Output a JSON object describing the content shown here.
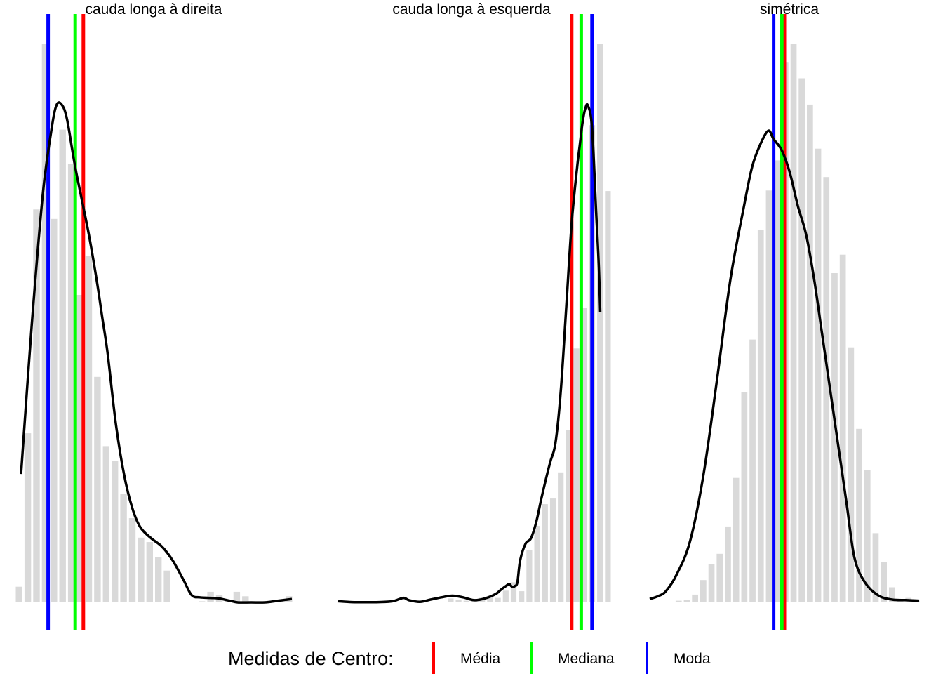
{
  "colors": {
    "bars": "#d9d9d9",
    "density": "#000000",
    "mean": "#ff0000",
    "median": "#00ff00",
    "mode": "#0000ff"
  },
  "legend": {
    "title": "Medidas de Centro:",
    "position": "bottom",
    "items": [
      {
        "label": "Média",
        "color": "#ff0000"
      },
      {
        "label": "Mediana",
        "color": "#00ff00"
      },
      {
        "label": "Moda",
        "color": "#0000ff"
      }
    ]
  },
  "chart_data": [
    {
      "type": "histogram",
      "title": "cauda longa à direita",
      "axes_visible": false,
      "bar_heights": [
        2.8,
        30.3,
        70.4,
        100,
        68.7,
        84.7,
        78.5,
        55.1,
        62.1,
        40.4,
        28.0,
        25.3,
        19.5,
        15.1,
        11.6,
        10.8,
        8.1,
        5.7,
        0,
        0,
        0,
        0.2,
        1.9,
        1.3,
        0.3,
        1.9,
        1.1,
        0,
        0,
        0,
        0.2,
        1.1
      ],
      "density": [
        [
          0.0,
          23.0
        ],
        [
          0.04,
          50.0
        ],
        [
          0.08,
          73.0
        ],
        [
          0.11,
          84.0
        ],
        [
          0.13,
          89.0
        ],
        [
          0.15,
          89.2
        ],
        [
          0.17,
          86.5
        ],
        [
          0.2,
          78.0
        ],
        [
          0.25,
          66.0
        ],
        [
          0.28,
          57.5
        ],
        [
          0.3,
          51.0
        ],
        [
          0.32,
          44.5
        ],
        [
          0.35,
          32.0
        ],
        [
          0.38,
          23.0
        ],
        [
          0.41,
          17.0
        ],
        [
          0.44,
          13.5
        ],
        [
          0.48,
          11.5
        ],
        [
          0.52,
          10.0
        ],
        [
          0.56,
          7.5
        ],
        [
          0.6,
          4.0
        ],
        [
          0.63,
          1.3
        ],
        [
          0.66,
          0.9
        ],
        [
          0.7,
          0.8
        ],
        [
          0.73,
          0.7
        ],
        [
          0.77,
          0.3
        ],
        [
          0.8,
          0.0
        ],
        [
          0.85,
          0.0
        ],
        [
          0.9,
          0.0
        ],
        [
          0.95,
          0.3
        ],
        [
          1.0,
          0.6
        ]
      ],
      "mean": 0.23,
      "median": 0.2,
      "mode": 0.1
    },
    {
      "type": "histogram",
      "title": "cauda longa à esquerda",
      "axes_visible": false,
      "bar_heights": [
        0,
        0,
        0,
        0,
        0,
        0,
        0,
        0,
        0,
        0,
        0.3,
        0,
        0,
        0,
        0.7,
        0.5,
        0.3,
        0.3,
        0.8,
        0.9,
        0.8,
        2.1,
        3.6,
        2.0,
        9.4,
        13.7,
        17.6,
        18.6,
        23.3,
        30.9,
        45.5,
        52.7,
        85.5,
        100,
        73.7
      ],
      "density": [
        [
          0.0,
          0.2
        ],
        [
          0.05,
          0.05
        ],
        [
          0.1,
          0.02
        ],
        [
          0.15,
          0.05
        ],
        [
          0.2,
          0.2
        ],
        [
          0.24,
          0.8
        ],
        [
          0.26,
          0.4
        ],
        [
          0.3,
          0.1
        ],
        [
          0.34,
          0.5
        ],
        [
          0.38,
          0.9
        ],
        [
          0.42,
          1.2
        ],
        [
          0.46,
          0.9
        ],
        [
          0.5,
          0.4
        ],
        [
          0.54,
          0.7
        ],
        [
          0.58,
          1.5
        ],
        [
          0.6,
          2.3
        ],
        [
          0.62,
          3.0
        ],
        [
          0.63,
          3.3
        ],
        [
          0.64,
          2.8
        ],
        [
          0.65,
          2.9
        ],
        [
          0.66,
          3.6
        ],
        [
          0.67,
          7.5
        ],
        [
          0.69,
          10.5
        ],
        [
          0.71,
          11.5
        ],
        [
          0.73,
          14.5
        ],
        [
          0.75,
          19.0
        ],
        [
          0.78,
          25.0
        ],
        [
          0.8,
          28.5
        ],
        [
          0.82,
          38.0
        ],
        [
          0.84,
          53.0
        ],
        [
          0.86,
          68.0
        ],
        [
          0.88,
          78.0
        ],
        [
          0.89,
          82.0
        ],
        [
          0.9,
          86.0
        ],
        [
          0.91,
          88.5
        ],
        [
          0.92,
          89.0
        ],
        [
          0.935,
          85.0
        ],
        [
          0.95,
          70.0
        ],
        [
          0.96,
          60.0
        ],
        [
          0.965,
          52.0
        ]
      ],
      "mean": 0.86,
      "median": 0.895,
      "mode": 0.935
    },
    {
      "type": "histogram",
      "title": "simétrica",
      "axes_visible": false,
      "bar_heights": [
        0,
        0,
        0.3,
        0.4,
        1.4,
        4.0,
        6.8,
        8.7,
        13.6,
        22.3,
        37.7,
        47.1,
        66.7,
        73.8,
        79.2,
        96.7,
        100,
        93.9,
        89.2,
        81.3,
        76.2,
        59.0,
        62.3,
        45.7,
        31.1,
        23.7,
        12.4,
        7.2,
        2.7,
        0.5,
        0.8,
        0.3,
        0
      ]
    },
    {
      "density": [
        [
          0.0,
          0.6
        ],
        [
          0.03,
          1.1
        ],
        [
          0.06,
          2.0
        ],
        [
          0.1,
          5.0
        ],
        [
          0.15,
          11.0
        ],
        [
          0.2,
          23.0
        ],
        [
          0.25,
          40.0
        ],
        [
          0.3,
          58.0
        ],
        [
          0.35,
          71.0
        ],
        [
          0.38,
          78.0
        ],
        [
          0.41,
          82.0
        ],
        [
          0.44,
          84.5
        ],
        [
          0.46,
          83.0
        ],
        [
          0.49,
          81.0
        ],
        [
          0.52,
          77.0
        ],
        [
          0.55,
          71.0
        ],
        [
          0.58,
          66.0
        ],
        [
          0.61,
          58.0
        ],
        [
          0.64,
          48.0
        ],
        [
          0.67,
          38.0
        ],
        [
          0.7,
          28.0
        ],
        [
          0.73,
          18.0
        ],
        [
          0.76,
          8.0
        ],
        [
          0.8,
          3.5
        ],
        [
          0.85,
          1.2
        ],
        [
          0.9,
          0.5
        ],
        [
          0.95,
          0.4
        ],
        [
          1.0,
          0.3
        ]
      ],
      "mean": 0.5,
      "median": 0.49,
      "mode": 0.46
    }
  ]
}
